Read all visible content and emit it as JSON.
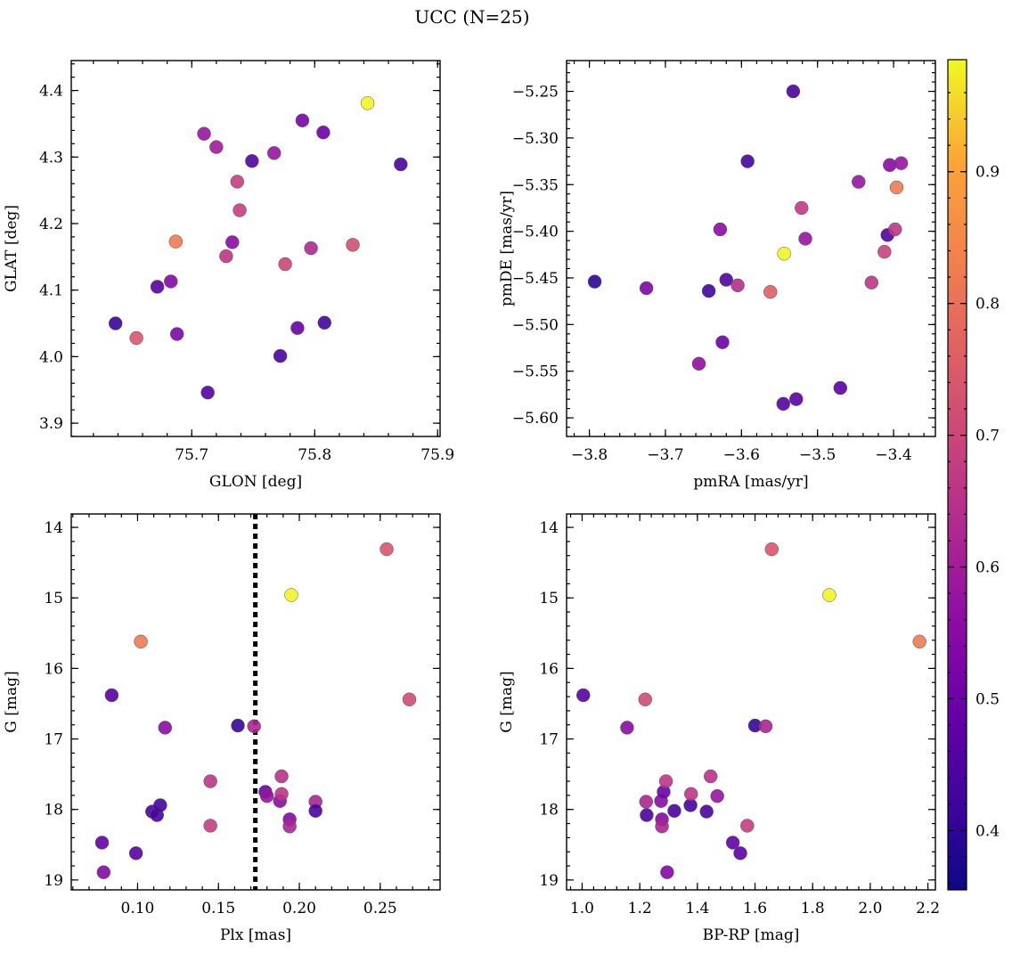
{
  "title": "UCC (N=25)",
  "colorbar": {
    "min": 0.355,
    "max": 0.985,
    "ticks": [
      0.4,
      0.5,
      0.6,
      0.7,
      0.8,
      0.9
    ],
    "tick_labels": [
      "0.4",
      "0.5",
      "0.6",
      "0.7",
      "0.8",
      "0.9"
    ],
    "colormap": "plasma"
  },
  "chart_data": [
    {
      "type": "scatter",
      "name": "glon-glat",
      "xlabel": "GLON [deg]",
      "ylabel": "GLAT [deg]",
      "xlim": [
        75.602,
        75.902
      ],
      "ylim": [
        3.88,
        4.445
      ],
      "xticks": [
        75.7,
        75.8,
        75.9
      ],
      "xtick_labels": [
        "75.7",
        "75.8",
        "75.9"
      ],
      "yticks": [
        3.9,
        4.0,
        4.1,
        4.2,
        4.3,
        4.4
      ],
      "ytick_labels": [
        "3.9",
        "4.0",
        "4.1",
        "4.2",
        "4.3",
        "4.4"
      ],
      "invert_y": false,
      "points": [
        {
          "x": 75.638,
          "y": 4.05,
          "c": 0.41
        },
        {
          "x": 75.655,
          "y": 4.028,
          "c": 0.74
        },
        {
          "x": 75.672,
          "y": 4.105,
          "c": 0.46
        },
        {
          "x": 75.683,
          "y": 4.113,
          "c": 0.54
        },
        {
          "x": 75.687,
          "y": 4.173,
          "c": 0.82
        },
        {
          "x": 75.688,
          "y": 4.034,
          "c": 0.53
        },
        {
          "x": 75.71,
          "y": 4.335,
          "c": 0.58
        },
        {
          "x": 75.713,
          "y": 3.946,
          "c": 0.46
        },
        {
          "x": 75.72,
          "y": 4.315,
          "c": 0.6
        },
        {
          "x": 75.728,
          "y": 4.151,
          "c": 0.66
        },
        {
          "x": 75.733,
          "y": 4.172,
          "c": 0.55
        },
        {
          "x": 75.737,
          "y": 4.263,
          "c": 0.68
        },
        {
          "x": 75.739,
          "y": 4.22,
          "c": 0.68
        },
        {
          "x": 75.749,
          "y": 4.294,
          "c": 0.45
        },
        {
          "x": 75.767,
          "y": 4.306,
          "c": 0.58
        },
        {
          "x": 75.772,
          "y": 4.001,
          "c": 0.44
        },
        {
          "x": 75.776,
          "y": 4.139,
          "c": 0.7
        },
        {
          "x": 75.786,
          "y": 4.043,
          "c": 0.49
        },
        {
          "x": 75.79,
          "y": 4.355,
          "c": 0.52
        },
        {
          "x": 75.797,
          "y": 4.163,
          "c": 0.63
        },
        {
          "x": 75.807,
          "y": 4.337,
          "c": 0.5
        },
        {
          "x": 75.808,
          "y": 4.051,
          "c": 0.43
        },
        {
          "x": 75.831,
          "y": 4.168,
          "c": 0.72
        },
        {
          "x": 75.843,
          "y": 4.381,
          "c": 0.98
        },
        {
          "x": 75.87,
          "y": 4.289,
          "c": 0.44
        }
      ]
    },
    {
      "type": "scatter",
      "name": "pmra-pmde",
      "xlabel": "pmRA [mas/yr]",
      "ylabel": "pmDE [mas/yr]",
      "xlim": [
        -3.83,
        -3.345
      ],
      "ylim": [
        -5.62,
        -5.217
      ],
      "xticks": [
        -3.8,
        -3.7,
        -3.6,
        -3.5,
        -3.4
      ],
      "xtick_labels": [
        "−3.8",
        "−3.7",
        "−3.6",
        "−3.5",
        "−3.4"
      ],
      "yticks": [
        -5.6,
        -5.55,
        -5.5,
        -5.45,
        -5.4,
        -5.35,
        -5.3,
        -5.25
      ],
      "ytick_labels": [
        "−5.60",
        "−5.55",
        "−5.50",
        "−5.45",
        "−5.40",
        "−5.35",
        "−5.30",
        "−5.25"
      ],
      "invert_y": false,
      "points": [
        {
          "x": -3.793,
          "y": -5.454,
          "c": 0.4
        },
        {
          "x": -3.725,
          "y": -5.461,
          "c": 0.53
        },
        {
          "x": -3.656,
          "y": -5.542,
          "c": 0.57
        },
        {
          "x": -3.643,
          "y": -5.464,
          "c": 0.43
        },
        {
          "x": -3.628,
          "y": -5.398,
          "c": 0.56
        },
        {
          "x": -3.625,
          "y": -5.519,
          "c": 0.5
        },
        {
          "x": -3.62,
          "y": -5.452,
          "c": 0.45
        },
        {
          "x": -3.605,
          "y": -5.458,
          "c": 0.64
        },
        {
          "x": -3.592,
          "y": -5.325,
          "c": 0.43
        },
        {
          "x": -3.562,
          "y": -5.465,
          "c": 0.76
        },
        {
          "x": -3.545,
          "y": -5.585,
          "c": 0.46
        },
        {
          "x": -3.544,
          "y": -5.424,
          "c": 0.98
        },
        {
          "x": -3.532,
          "y": -5.25,
          "c": 0.44
        },
        {
          "x": -3.528,
          "y": -5.58,
          "c": 0.47
        },
        {
          "x": -3.521,
          "y": -5.375,
          "c": 0.67
        },
        {
          "x": -3.516,
          "y": -5.408,
          "c": 0.58
        },
        {
          "x": -3.47,
          "y": -5.568,
          "c": 0.47
        },
        {
          "x": -3.446,
          "y": -5.347,
          "c": 0.58
        },
        {
          "x": -3.429,
          "y": -5.455,
          "c": 0.66
        },
        {
          "x": -3.412,
          "y": -5.422,
          "c": 0.69
        },
        {
          "x": -3.408,
          "y": -5.404,
          "c": 0.45
        },
        {
          "x": -3.405,
          "y": -5.329,
          "c": 0.55
        },
        {
          "x": -3.398,
          "y": -5.398,
          "c": 0.66
        },
        {
          "x": -3.396,
          "y": -5.353,
          "c": 0.82
        },
        {
          "x": -3.39,
          "y": -5.327,
          "c": 0.58
        }
      ]
    },
    {
      "type": "scatter",
      "name": "plx-g",
      "xlabel": "Plx [mas]",
      "ylabel": "G [mag]",
      "xlim": [
        0.059,
        0.287
      ],
      "ylim": [
        19.14,
        13.81
      ],
      "xticks": [
        0.1,
        0.15,
        0.2,
        0.25
      ],
      "xtick_labels": [
        "0.10",
        "0.15",
        "0.20",
        "0.25"
      ],
      "yticks": [
        14,
        15,
        16,
        17,
        18,
        19
      ],
      "ytick_labels": [
        "14",
        "15",
        "16",
        "17",
        "18",
        "19"
      ],
      "invert_y": true,
      "vline": 0.1728,
      "points": [
        {
          "x": 0.078,
          "y": 18.47,
          "c": 0.48
        },
        {
          "x": 0.079,
          "y": 18.89,
          "c": 0.54
        },
        {
          "x": 0.084,
          "y": 16.38,
          "c": 0.46
        },
        {
          "x": 0.099,
          "y": 18.62,
          "c": 0.47
        },
        {
          "x": 0.102,
          "y": 15.62,
          "c": 0.82
        },
        {
          "x": 0.109,
          "y": 18.03,
          "c": 0.44
        },
        {
          "x": 0.112,
          "y": 18.08,
          "c": 0.44
        },
        {
          "x": 0.114,
          "y": 17.94,
          "c": 0.43
        },
        {
          "x": 0.117,
          "y": 16.84,
          "c": 0.55
        },
        {
          "x": 0.145,
          "y": 17.6,
          "c": 0.66
        },
        {
          "x": 0.145,
          "y": 18.23,
          "c": 0.68
        },
        {
          "x": 0.162,
          "y": 16.81,
          "c": 0.41
        },
        {
          "x": 0.172,
          "y": 16.82,
          "c": 0.62
        },
        {
          "x": 0.179,
          "y": 17.75,
          "c": 0.5
        },
        {
          "x": 0.18,
          "y": 17.81,
          "c": 0.58
        },
        {
          "x": 0.188,
          "y": 17.88,
          "c": 0.55
        },
        {
          "x": 0.189,
          "y": 17.53,
          "c": 0.65
        },
        {
          "x": 0.189,
          "y": 17.78,
          "c": 0.66
        },
        {
          "x": 0.194,
          "y": 18.14,
          "c": 0.54
        },
        {
          "x": 0.194,
          "y": 18.24,
          "c": 0.62
        },
        {
          "x": 0.195,
          "y": 14.96,
          "c": 0.98
        },
        {
          "x": 0.21,
          "y": 17.89,
          "c": 0.62
        },
        {
          "x": 0.21,
          "y": 18.02,
          "c": 0.44
        },
        {
          "x": 0.254,
          "y": 14.31,
          "c": 0.74
        },
        {
          "x": 0.268,
          "y": 16.44,
          "c": 0.71
        }
      ]
    },
    {
      "type": "scatter",
      "name": "bprp-g",
      "xlabel": "BP-RP [mag]",
      "ylabel": "G [mag]",
      "xlim": [
        0.946,
        2.226
      ],
      "ylim": [
        19.14,
        13.81
      ],
      "xticks": [
        1.0,
        1.2,
        1.4,
        1.6,
        1.8,
        2.0,
        2.2
      ],
      "xtick_labels": [
        "1.0",
        "1.2",
        "1.4",
        "1.6",
        "1.8",
        "2.0",
        "2.2"
      ],
      "yticks": [
        14,
        15,
        16,
        17,
        18,
        19
      ],
      "ytick_labels": [
        "14",
        "15",
        "16",
        "17",
        "18",
        "19"
      ],
      "invert_y": true,
      "points": [
        {
          "x": 1.004,
          "y": 16.38,
          "c": 0.46
        },
        {
          "x": 1.156,
          "y": 16.84,
          "c": 0.55
        },
        {
          "x": 1.219,
          "y": 16.44,
          "c": 0.71
        },
        {
          "x": 1.222,
          "y": 17.89,
          "c": 0.62
        },
        {
          "x": 1.224,
          "y": 18.08,
          "c": 0.44
        },
        {
          "x": 1.274,
          "y": 17.88,
          "c": 0.55
        },
        {
          "x": 1.277,
          "y": 18.14,
          "c": 0.54
        },
        {
          "x": 1.277,
          "y": 18.24,
          "c": 0.62
        },
        {
          "x": 1.283,
          "y": 17.75,
          "c": 0.5
        },
        {
          "x": 1.291,
          "y": 17.6,
          "c": 0.66
        },
        {
          "x": 1.295,
          "y": 18.89,
          "c": 0.54
        },
        {
          "x": 1.32,
          "y": 18.02,
          "c": 0.44
        },
        {
          "x": 1.376,
          "y": 17.94,
          "c": 0.43
        },
        {
          "x": 1.378,
          "y": 17.78,
          "c": 0.66
        },
        {
          "x": 1.432,
          "y": 18.03,
          "c": 0.44
        },
        {
          "x": 1.446,
          "y": 17.53,
          "c": 0.65
        },
        {
          "x": 1.469,
          "y": 17.81,
          "c": 0.58
        },
        {
          "x": 1.523,
          "y": 18.47,
          "c": 0.48
        },
        {
          "x": 1.549,
          "y": 18.62,
          "c": 0.47
        },
        {
          "x": 1.573,
          "y": 18.23,
          "c": 0.68
        },
        {
          "x": 1.6,
          "y": 16.81,
          "c": 0.41
        },
        {
          "x": 1.637,
          "y": 16.82,
          "c": 0.62
        },
        {
          "x": 1.658,
          "y": 14.31,
          "c": 0.74
        },
        {
          "x": 1.858,
          "y": 14.96,
          "c": 0.98
        },
        {
          "x": 2.171,
          "y": 15.62,
          "c": 0.82
        }
      ]
    }
  ]
}
